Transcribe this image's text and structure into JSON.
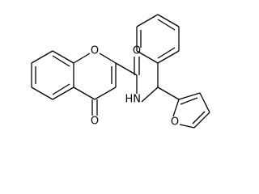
{
  "atoms": [
    {
      "label": "O"
    },
    {
      "label": "O"
    },
    {
      "label": "HN"
    },
    {
      "label": "O"
    },
    {
      "label": "O"
    }
  ]
}
